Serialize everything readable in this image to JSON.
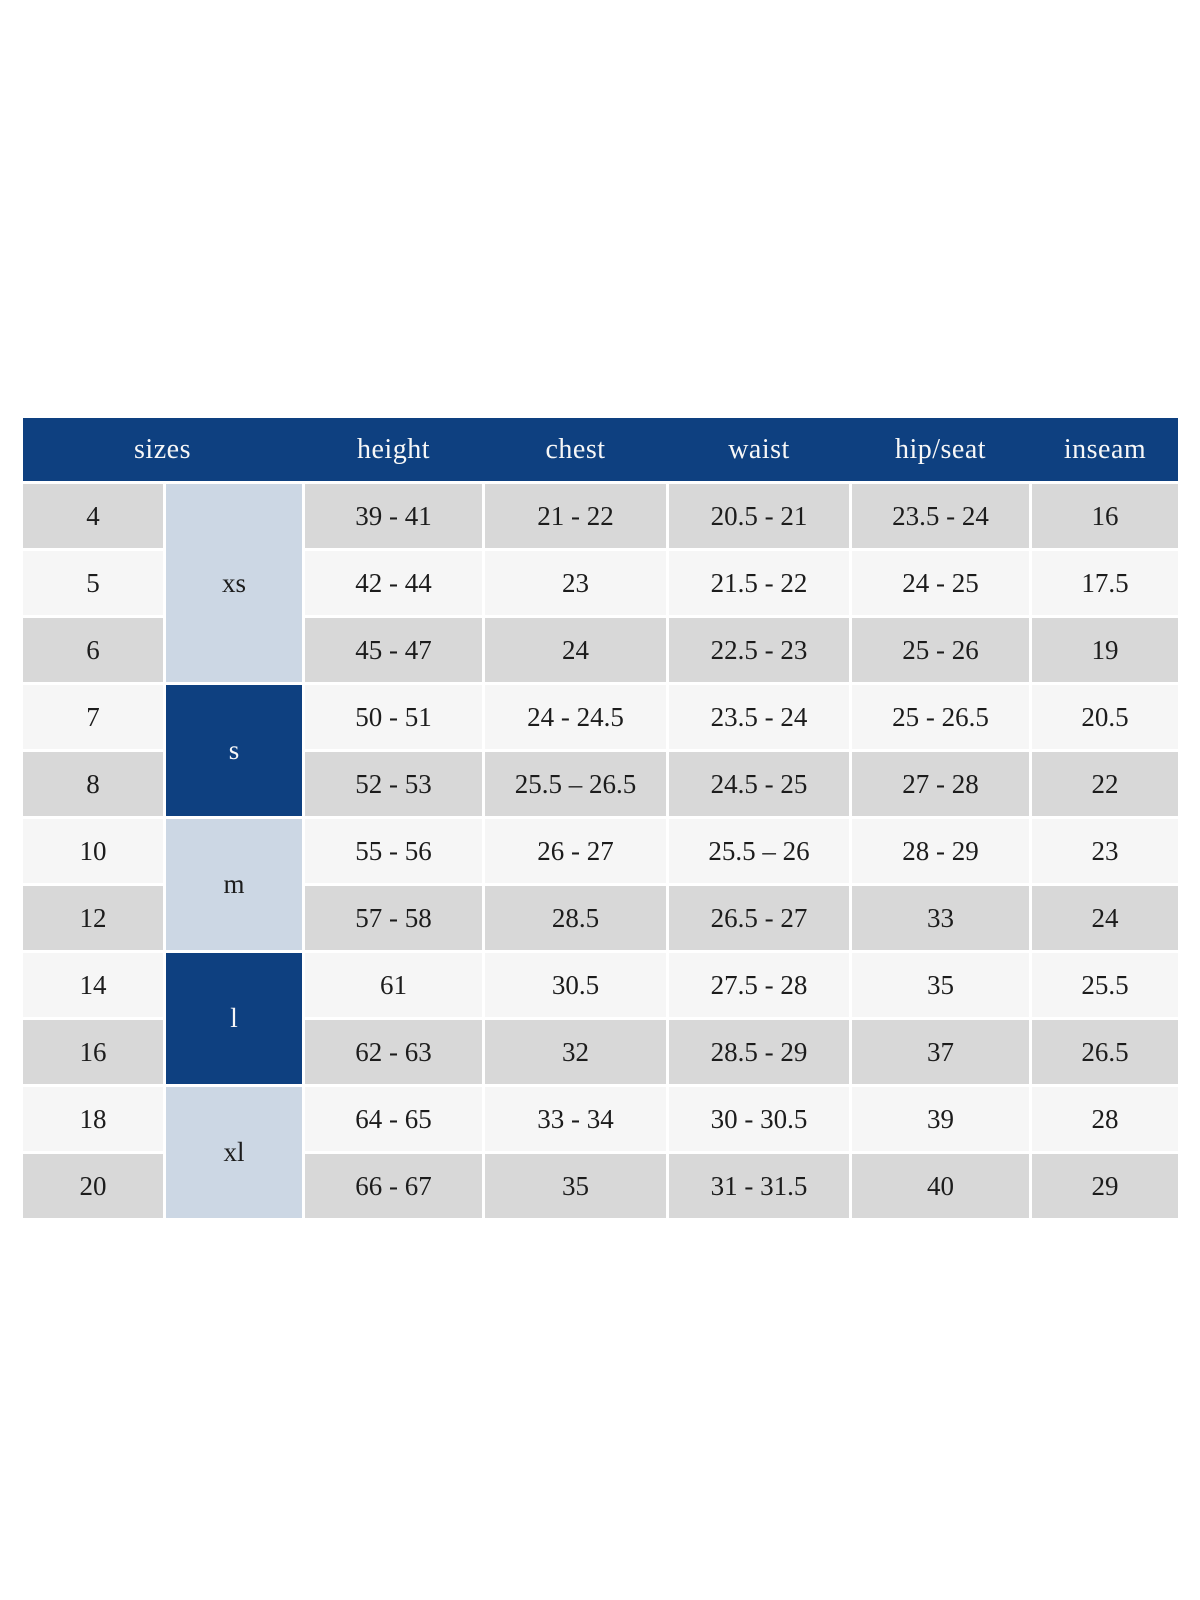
{
  "colors": {
    "header_bg": "#0e4080",
    "header_text": "#f7f7f7",
    "group_light": "#ccd7e4",
    "group_dark": "#0e4080",
    "row_gray": "#d8d8d8",
    "row_light": "#f6f6f6",
    "body_text": "#1c1c1c",
    "page_bg": "#ffffff"
  },
  "chart_data": {
    "type": "table",
    "headers": [
      "sizes",
      "height",
      "chest",
      "waist",
      "hip/seat",
      "inseam"
    ],
    "size_groups": [
      {
        "label": "xs",
        "sizes": [
          "4",
          "5",
          "6"
        ]
      },
      {
        "label": "s",
        "sizes": [
          "7",
          "8"
        ]
      },
      {
        "label": "m",
        "sizes": [
          "10",
          "12"
        ]
      },
      {
        "label": "l",
        "sizes": [
          "14",
          "16"
        ]
      },
      {
        "label": "xl",
        "sizes": [
          "18",
          "20"
        ]
      }
    ],
    "rows": [
      {
        "size": "4",
        "group": "xs",
        "height": "39 - 41",
        "chest": "21 - 22",
        "waist": "20.5 - 21",
        "hip_seat": "23.5 - 24",
        "inseam": "16"
      },
      {
        "size": "5",
        "group": "xs",
        "height": "42 - 44",
        "chest": "23",
        "waist": "21.5 - 22",
        "hip_seat": "24 - 25",
        "inseam": "17.5"
      },
      {
        "size": "6",
        "group": "xs",
        "height": "45 - 47",
        "chest": "24",
        "waist": "22.5 - 23",
        "hip_seat": "25 - 26",
        "inseam": "19"
      },
      {
        "size": "7",
        "group": "s",
        "height": "50 - 51",
        "chest": "24 - 24.5",
        "waist": "23.5 - 24",
        "hip_seat": "25 - 26.5",
        "inseam": "20.5"
      },
      {
        "size": "8",
        "group": "s",
        "height": "52 - 53",
        "chest": "25.5 – 26.5",
        "waist": "24.5 - 25",
        "hip_seat": "27 - 28",
        "inseam": "22"
      },
      {
        "size": "10",
        "group": "m",
        "height": "55 - 56",
        "chest": "26 - 27",
        "waist": "25.5 – 26",
        "hip_seat": "28 - 29",
        "inseam": "23"
      },
      {
        "size": "12",
        "group": "m",
        "height": "57 - 58",
        "chest": "28.5",
        "waist": "26.5 - 27",
        "hip_seat": "33",
        "inseam": "24"
      },
      {
        "size": "14",
        "group": "l",
        "height": "61",
        "chest": "30.5",
        "waist": "27.5 - 28",
        "hip_seat": "35",
        "inseam": "25.5"
      },
      {
        "size": "16",
        "group": "l",
        "height": "62 - 63",
        "chest": "32",
        "waist": "28.5 - 29",
        "hip_seat": "37",
        "inseam": "26.5"
      },
      {
        "size": "18",
        "group": "xl",
        "height": "64 - 65",
        "chest": "33 - 34",
        "waist": "30 - 30.5",
        "hip_seat": "39",
        "inseam": "28"
      },
      {
        "size": "20",
        "group": "xl",
        "height": "66 - 67",
        "chest": "35",
        "waist": "31 - 31.5",
        "hip_seat": "40",
        "inseam": "29"
      }
    ]
  }
}
